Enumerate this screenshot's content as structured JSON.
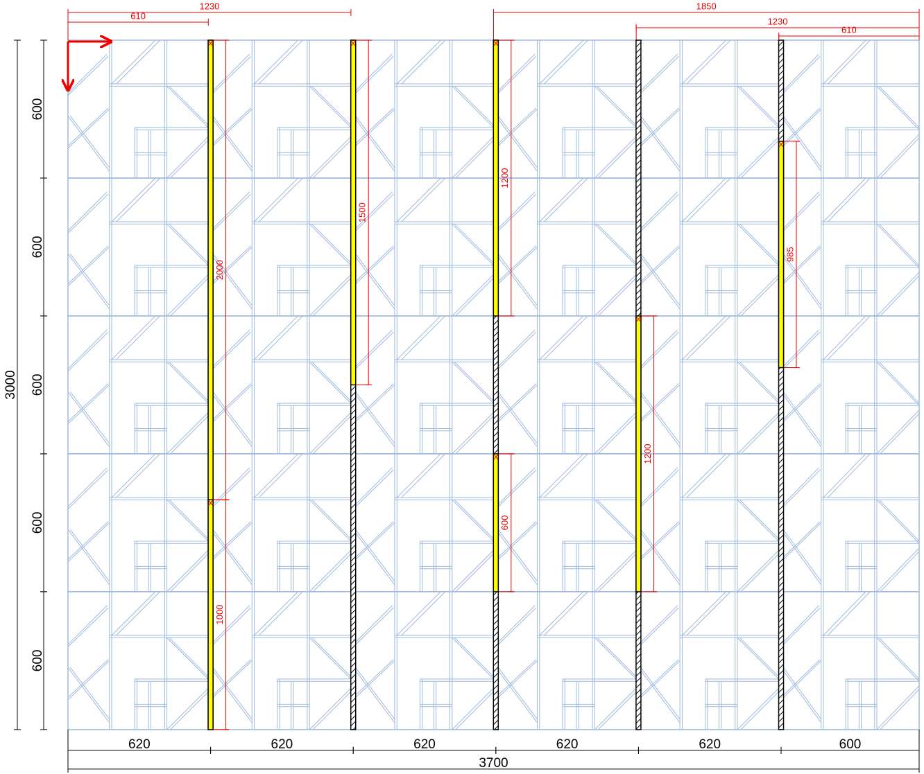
{
  "panel": {
    "width": 3700,
    "height": 3000
  },
  "column_widths": [
    620,
    620,
    620,
    620,
    620,
    600
  ],
  "row_heights": [
    600,
    600,
    600,
    600,
    600
  ],
  "top_dims_left": [
    1230,
    610
  ],
  "top_dims_right": [
    1850,
    1230,
    610
  ],
  "profiles": [
    {
      "dims": [
        2000,
        1000
      ]
    },
    {
      "dims": [
        1500
      ]
    },
    {
      "dims": [
        1200,
        600
      ]
    },
    {
      "dims": [
        1200
      ]
    },
    {
      "dims": [
        985
      ]
    }
  ]
}
